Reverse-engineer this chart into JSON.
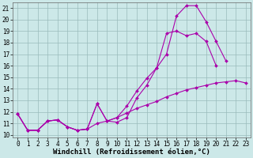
{
  "xlabel": "Windchill (Refroidissement éolien,°C)",
  "xlim": [
    -0.5,
    23.5
  ],
  "ylim": [
    9.8,
    21.5
  ],
  "yticks": [
    10,
    11,
    12,
    13,
    14,
    15,
    16,
    17,
    18,
    19,
    20,
    21
  ],
  "xticks": [
    0,
    1,
    2,
    3,
    4,
    5,
    6,
    7,
    8,
    9,
    10,
    11,
    12,
    13,
    14,
    15,
    16,
    17,
    18,
    19,
    20,
    21,
    22,
    23
  ],
  "bg_color": "#cce8e8",
  "line_color": "#aa00aa",
  "line1_x": [
    0,
    1,
    2,
    3,
    4,
    5,
    6,
    7,
    8,
    9,
    10,
    11,
    12,
    13,
    14,
    15,
    16,
    17,
    18,
    19,
    20
  ],
  "line1_y": [
    11.8,
    10.4,
    10.4,
    11.2,
    11.3,
    10.7,
    10.4,
    10.5,
    12.7,
    11.2,
    11.1,
    11.5,
    13.2,
    14.3,
    15.8,
    18.8,
    19.0,
    18.6,
    18.8,
    18.1,
    16.0
  ],
  "line2_x": [
    0,
    1,
    2,
    3,
    4,
    5,
    6,
    7,
    8,
    9,
    10,
    11,
    12,
    13,
    14,
    15,
    16,
    17,
    18,
    19,
    20,
    21
  ],
  "line2_y": [
    11.8,
    10.4,
    10.4,
    11.2,
    11.3,
    10.7,
    10.4,
    10.5,
    12.7,
    11.2,
    11.5,
    12.5,
    13.8,
    14.9,
    15.8,
    17.0,
    20.3,
    21.2,
    21.2,
    19.8,
    18.1,
    16.4
  ],
  "line3_x": [
    0,
    1,
    2,
    3,
    4,
    5,
    6,
    7,
    8,
    9,
    10,
    11,
    12,
    13,
    14,
    15,
    16,
    17,
    18,
    19,
    20,
    21,
    22,
    23
  ],
  "line3_y": [
    11.8,
    10.4,
    10.4,
    11.2,
    11.3,
    10.7,
    10.4,
    10.5,
    11.0,
    11.2,
    11.5,
    11.9,
    12.3,
    12.6,
    12.9,
    13.3,
    13.6,
    13.9,
    14.1,
    14.3,
    14.5,
    14.6,
    14.7,
    14.5
  ],
  "markersize": 2.0,
  "linewidth": 0.8,
  "grid_color": "#99bbbb",
  "xlabel_fontsize": 6.5,
  "tick_fontsize": 5.5
}
